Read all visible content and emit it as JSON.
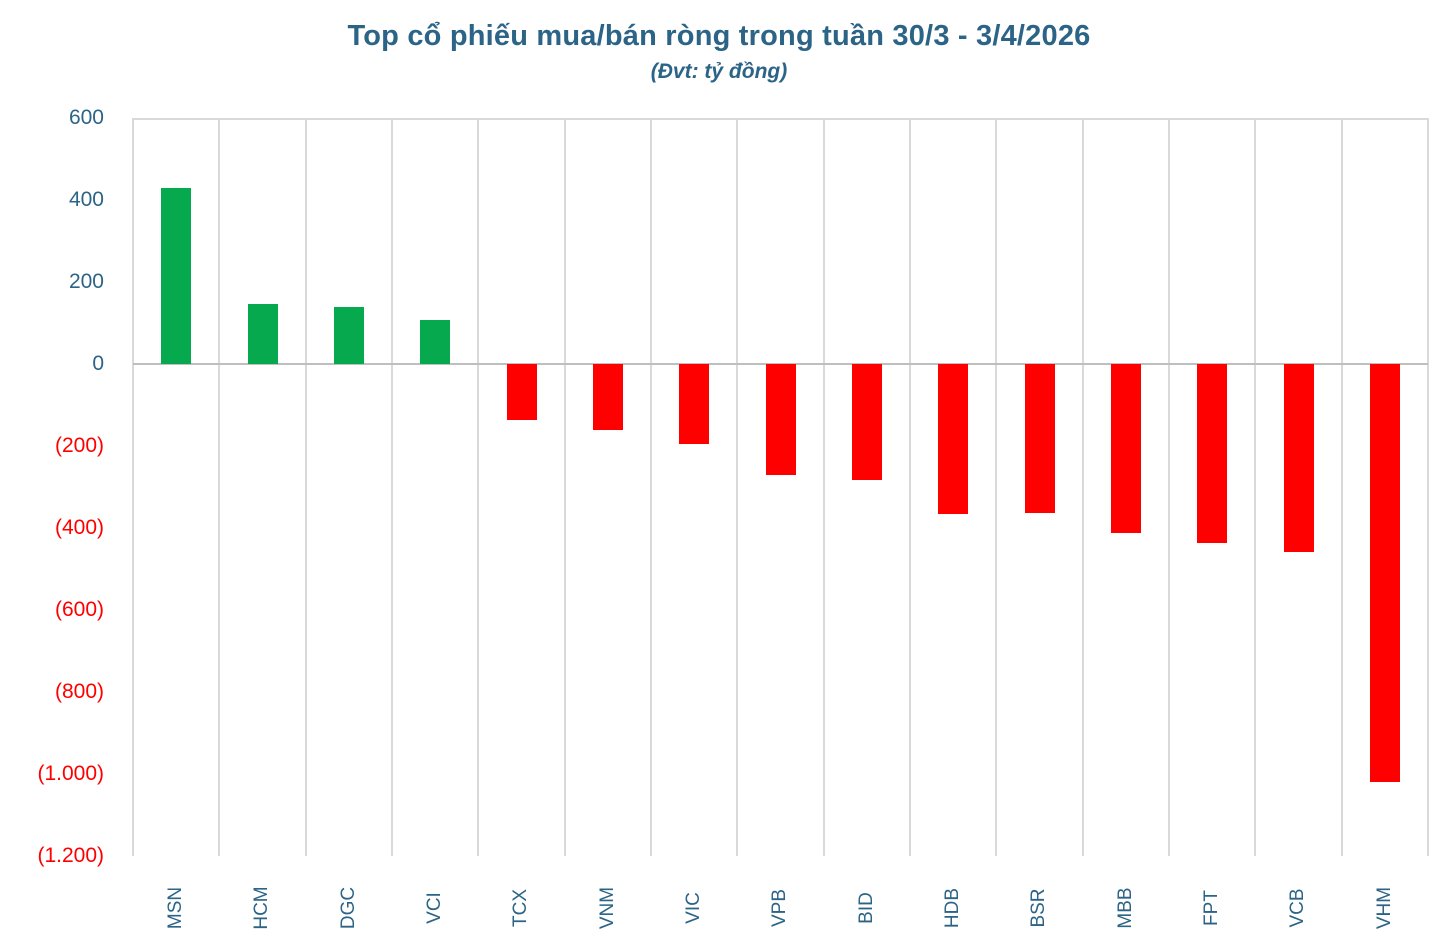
{
  "chart_data": {
    "type": "bar",
    "title": "Top cổ phiếu mua/bán ròng trong tuần 30/3 - 3/4/2026",
    "subtitle": "(Đvt: tỷ đồng)",
    "categories": [
      "MSN",
      "HCM",
      "DGC",
      "VCI",
      "TCX",
      "VNM",
      "VIC",
      "VPB",
      "BID",
      "HDB",
      "BSR",
      "MBB",
      "FPT",
      "VCB",
      "VHM"
    ],
    "values": [
      430,
      147,
      140,
      108,
      -136,
      -160,
      -196,
      -271,
      -284,
      -366,
      -364,
      -413,
      -436,
      -459,
      -1020
    ],
    "xlabel": "",
    "ylabel": "",
    "ylim": [
      -1200,
      600
    ],
    "yticks": [
      {
        "value": 600,
        "label": "600"
      },
      {
        "value": 400,
        "label": "400"
      },
      {
        "value": 200,
        "label": "200"
      },
      {
        "value": 0,
        "label": "0"
      },
      {
        "value": -200,
        "label": "(200)"
      },
      {
        "value": -400,
        "label": "(400)"
      },
      {
        "value": -600,
        "label": "(600)"
      },
      {
        "value": -800,
        "label": "(800)"
      },
      {
        "value": -1000,
        "label": "(1.000)"
      },
      {
        "value": -1200,
        "label": "(1.200)"
      }
    ],
    "grid": "vertical-only",
    "legend": "none",
    "colors": {
      "positive_bar": "#07A94F",
      "negative_bar": "#FF0000",
      "title_text": "#2C6487",
      "axis_text": "#2C6487",
      "negative_tick_text": "#FF0000",
      "gridline": "#D9D9D9",
      "zero_line": "#BFBFBF",
      "background": "#FFFFFF"
    }
  }
}
